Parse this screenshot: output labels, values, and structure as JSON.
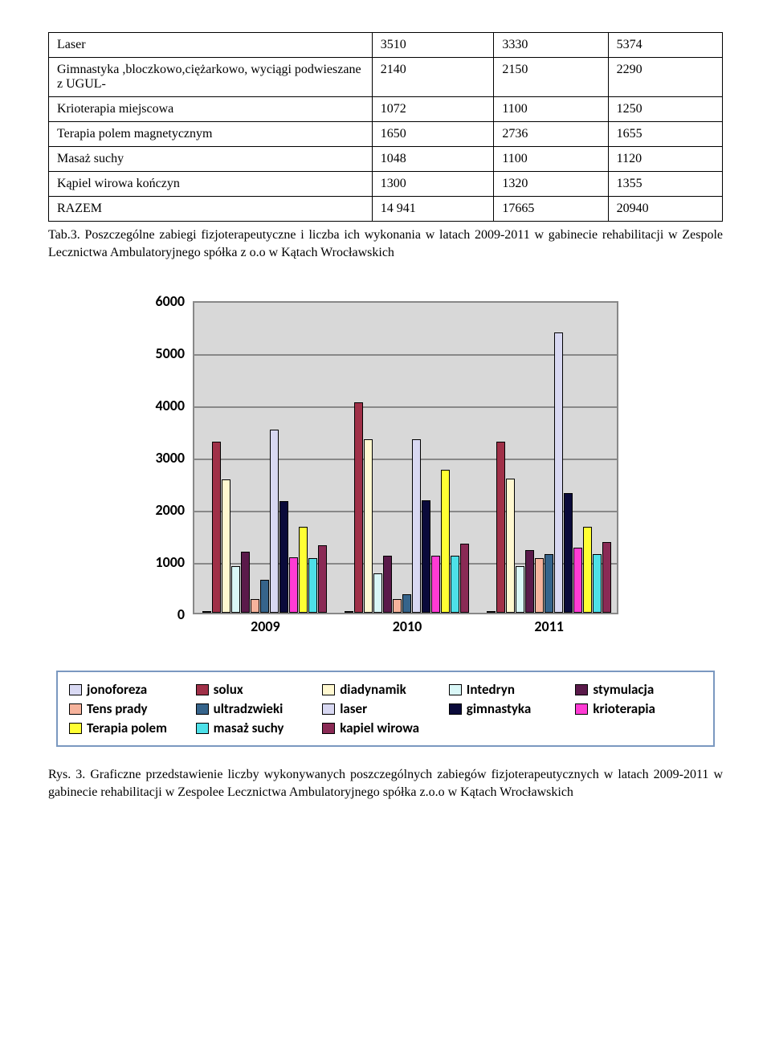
{
  "table": {
    "rows": [
      {
        "label": "Laser",
        "c1": "3510",
        "c2": "3330",
        "c3": "5374"
      },
      {
        "label": "Gimnastyka ,bloczkowo,ciężarkowo, wyciągi podwieszane z UGUL-",
        "c1": "2140",
        "c2": "2150",
        "c3": "2290"
      },
      {
        "label": "Krioterapia miejscowa",
        "c1": "1072",
        "c2": "1100",
        "c3": "1250"
      },
      {
        "label": "Terapia polem magnetycznym",
        "c1": "1650",
        "c2": "2736",
        "c3": "1655"
      },
      {
        "label": "Masaż suchy",
        "c1": "1048",
        "c2": "1100",
        "c3": "1120"
      },
      {
        "label": "Kąpiel wirowa kończyn",
        "c1": "1300",
        "c2": "1320",
        "c3": "1355"
      },
      {
        "label": "RAZEM",
        "c1": "14 941",
        "c2": "17665",
        "c3": "20940"
      }
    ]
  },
  "tab_caption": "Tab.3. Poszczególne zabiegi fizjoterapeutyczne i liczba ich wykonania w latach 2009-2011 w gabinecie rehabilitacji w Zespole Lecznictwa Ambulatoryjnego spółka z o.o w Kątach Wrocławskich",
  "chart": {
    "ylim": [
      0,
      6000
    ],
    "ytick_step": 1000,
    "yticks": [
      "0",
      "1000",
      "2000",
      "3000",
      "4000",
      "5000",
      "6000"
    ],
    "plot_bg": "#d8d8d8",
    "grid_color": "#888888",
    "categories": [
      "2009",
      "2010",
      "2011"
    ],
    "series": [
      {
        "name": "jonoforeza",
        "color": "#d9d9f3",
        "values": [
          20,
          20,
          20
        ]
      },
      {
        "name": "solux",
        "color": "#a03048",
        "values": [
          3280,
          4030,
          3280
        ]
      },
      {
        "name": "diadynamik",
        "color": "#fff8d0",
        "values": [
          2560,
          3320,
          2580
        ]
      },
      {
        "name": "Intedryn",
        "color": "#d9f7f7",
        "values": [
          900,
          750,
          900
        ]
      },
      {
        "name": "stymulacja",
        "color": "#5a1a4a",
        "values": [
          1170,
          1100,
          1200
        ]
      },
      {
        "name": "Tens prady",
        "color": "#f6b39c",
        "values": [
          260,
          270,
          1050
        ]
      },
      {
        "name": "ultradzwieki",
        "color": "#36648b",
        "values": [
          640,
          360,
          1120
        ]
      },
      {
        "name": "laser",
        "color": "#d8d8f2",
        "values": [
          3510,
          3330,
          5374
        ]
      },
      {
        "name": "gimnastyka",
        "color": "#0a0a3a",
        "values": [
          2140,
          2150,
          2290
        ]
      },
      {
        "name": "krioterapia",
        "color": "#ff3bd4",
        "values": [
          1072,
          1100,
          1250
        ]
      },
      {
        "name": "Terapia polem",
        "color": "#ffff33",
        "values": [
          1650,
          2736,
          1655
        ]
      },
      {
        "name": "masaż suchy",
        "color": "#4de0e8",
        "values": [
          1048,
          1100,
          1120
        ]
      },
      {
        "name": "kapiel wirowa",
        "color": "#8a2a55",
        "values": [
          1300,
          1320,
          1355
        ]
      }
    ],
    "legend_rows": [
      [
        "jonoforeza",
        "solux",
        "diadynamik",
        "Intedryn",
        "stymulacja"
      ],
      [
        "Tens prady",
        "ultradzwieki",
        "laser",
        "gimnastyka",
        "krioterapia"
      ],
      [
        "Terapia polem",
        "masaż suchy",
        "kapiel wirowa"
      ]
    ]
  },
  "fig_caption": "Rys. 3. Graficzne przedstawienie liczby wykonywanych poszczególnych zabiegów fizjoterapeutycznych w latach 2009-2011 w gabinecie rehabilitacji w Zespolee Lecznictwa Ambulatoryjnego spółka z.o.o w Kątach Wrocławskich"
}
